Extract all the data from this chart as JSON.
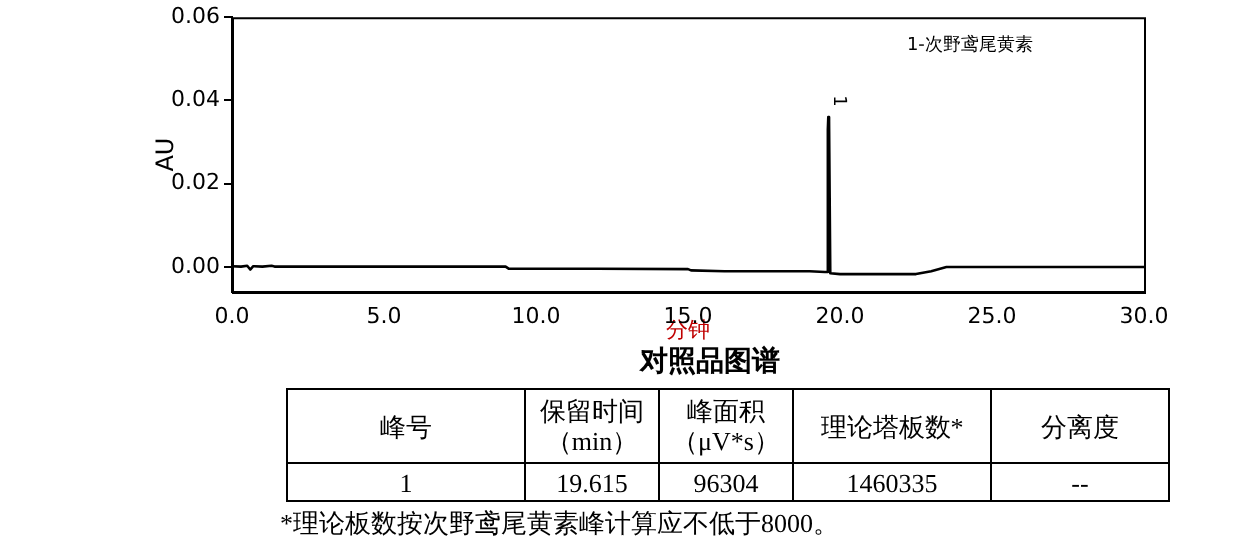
{
  "chart_data": {
    "type": "line",
    "title": "对照品图谱",
    "xlabel": "分钟",
    "ylabel": "AU",
    "x": [
      0,
      0.3,
      0.5,
      0.6,
      0.7,
      1.0,
      1.3,
      1.4,
      5,
      9.0,
      9.1,
      12,
      15.0,
      15.1,
      16.2,
      19.0,
      19.5,
      19.55,
      19.6,
      19.615,
      19.64,
      19.68,
      20.0,
      21,
      22.5,
      23.0,
      23.5,
      25,
      30
    ],
    "series": [
      {
        "color": "#000000",
        "values": [
          0.0002,
          0.0001,
          0.0003,
          -0.0006,
          0.0002,
          0.0001,
          0.0003,
          0.0001,
          0.0001,
          0.0001,
          -0.0004,
          -0.0004,
          -0.0005,
          -0.0008,
          -0.001,
          -0.001,
          -0.0012,
          -0.0012,
          0.033,
          0.036,
          0.035,
          -0.0015,
          -0.0017,
          -0.0017,
          -0.0017,
          -0.001,
          0.0,
          0.0,
          0.0
        ]
      }
    ],
    "xlim": [
      0,
      30
    ],
    "xticks": [
      {
        "value": 0,
        "label": "0.0"
      },
      {
        "value": 5,
        "label": "5.0"
      },
      {
        "value": 10,
        "label": "10.0"
      },
      {
        "value": 15,
        "label": "15.0"
      },
      {
        "value": 20,
        "label": "20.0"
      },
      {
        "value": 25,
        "label": "25.0"
      },
      {
        "value": 30,
        "label": "30.0"
      }
    ],
    "ylim": [
      -0.006,
      0.06
    ],
    "yticks": [
      {
        "value": 0,
        "label": "0.00"
      },
      {
        "value": 0.02,
        "label": "0.02"
      },
      {
        "value": 0.04,
        "label": "0.04"
      },
      {
        "value": 0.06,
        "label": "0.06"
      }
    ],
    "grid": false,
    "legend": false,
    "marker": "none",
    "line_style": "solid",
    "annotations": [
      "1-次野鸢尾黄素",
      {
        "text": "1",
        "x": 19.615,
        "y": 0.036
      },
      "峰号",
      "保留时间（min）",
      "峰面积（μV*s）",
      "理论塔板数*",
      "分离度",
      "1",
      "19.615",
      "96304",
      "1460335",
      "--",
      "*理论板数按次野鸢尾黄素峰计算应不低于8000。"
    ]
  }
}
